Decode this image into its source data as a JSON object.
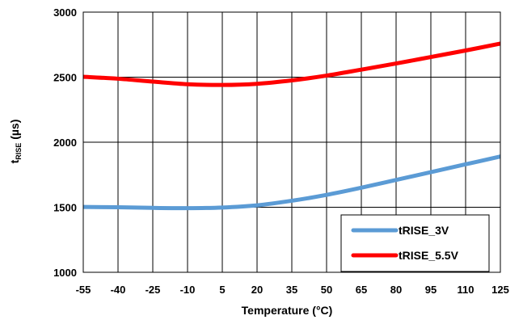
{
  "chart_data": {
    "type": "line",
    "xlabel": "Temperature (°C)",
    "ylabel": {
      "main": "t",
      "sub": "RISE",
      "unit": " (µs)"
    },
    "x_ticks": [
      "-55",
      "-40",
      "-25",
      "-10",
      "5",
      "20",
      "35",
      "50",
      "65",
      "80",
      "95",
      "110",
      "125"
    ],
    "y_ticks": [
      "1000",
      "1500",
      "2000",
      "2500",
      "3000"
    ],
    "xlim": [
      -55,
      125
    ],
    "ylim": [
      1000,
      3000
    ],
    "grid": true,
    "legend_position": "bottom-right",
    "series": [
      {
        "name": "tRISE_3V",
        "color": "#5B9BD5",
        "x": [
          -55,
          -40,
          -25,
          -10,
          5,
          20,
          35,
          50,
          65,
          80,
          95,
          110,
          125
        ],
        "y": [
          1502,
          1500,
          1495,
          1493,
          1498,
          1515,
          1550,
          1595,
          1650,
          1710,
          1770,
          1830,
          1890
        ]
      },
      {
        "name": "tRISE_5.5V",
        "color": "#FF0000",
        "x": [
          -55,
          -40,
          -25,
          -10,
          5,
          20,
          35,
          50,
          65,
          80,
          95,
          110,
          125
        ],
        "y": [
          2503,
          2488,
          2466,
          2446,
          2440,
          2449,
          2475,
          2512,
          2558,
          2605,
          2655,
          2705,
          2758
        ]
      }
    ]
  }
}
